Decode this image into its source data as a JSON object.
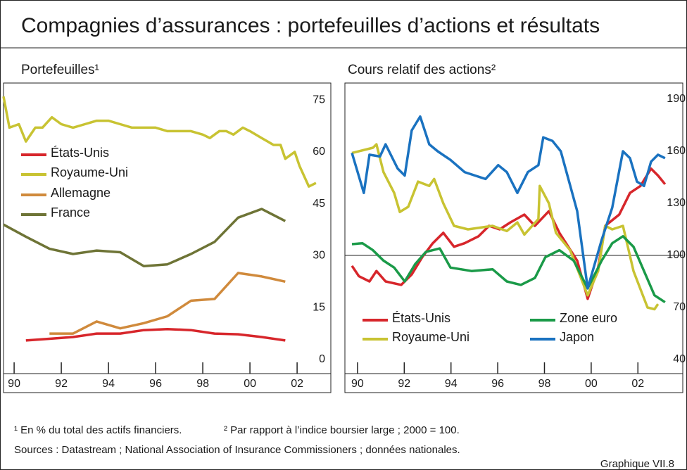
{
  "title": "Compagnies d’assurances : portefeuilles d’actions et résultats",
  "chart_data": [
    {
      "type": "line",
      "title": "Portefeuilles¹",
      "xlim": [
        1989.55,
        2003.43
      ],
      "ylim": [
        -4.07,
        79.9
      ],
      "xticks": [
        {
          "value": 1990,
          "label": "90"
        },
        {
          "value": 1992,
          "label": "92"
        },
        {
          "value": 1994,
          "label": "94"
        },
        {
          "value": 1996,
          "label": "96"
        },
        {
          "value": 1998,
          "label": "98"
        },
        {
          "value": 2000,
          "label": "00"
        },
        {
          "value": 2002,
          "label": "02"
        }
      ],
      "yticks": [
        0,
        15,
        30,
        45,
        60,
        75
      ],
      "legend": "upper left",
      "series": [
        {
          "name": "États-Unis",
          "color": "#d7262b",
          "x": [
            1990.5,
            1991.5,
            1992.5,
            1993.5,
            1994.5,
            1995.5,
            1996.5,
            1997.5,
            1998.5,
            1999.5,
            2000.5,
            2001.5
          ],
          "values": [
            5.5,
            6,
            6.5,
            7.5,
            7.5,
            8.5,
            8.8,
            8.5,
            7.5,
            7.3,
            6.5,
            5.5
          ]
        },
        {
          "name": "Royaume-Uni",
          "color": "#c8c332",
          "x": [
            1989.55,
            1989.8,
            1990.2,
            1990.5,
            1990.9,
            1991.2,
            1991.6,
            1992,
            1992.5,
            1993,
            1993.5,
            1994,
            1994.5,
            1995,
            1995.5,
            1996,
            1996.5,
            1997,
            1997.5,
            1998,
            1998.3,
            1998.7,
            1999,
            1999.3,
            1999.7,
            2000,
            2000.5,
            2001,
            2001.3,
            2001.5,
            2001.9,
            2002.1,
            2002.5,
            2002.8
          ],
          "values": [
            76,
            67,
            68,
            63,
            67,
            67,
            70,
            68,
            67,
            68,
            69,
            69,
            68,
            67,
            67,
            67,
            66,
            66,
            66,
            65,
            64,
            66,
            66,
            65,
            67,
            66,
            64,
            62,
            62,
            58,
            60,
            56,
            50,
            51
          ]
        },
        {
          "name": "Allemagne",
          "color": "#d08a3c",
          "x": [
            1991.5,
            1992.5,
            1993.5,
            1994.5,
            1995.5,
            1996.5,
            1997.5,
            1998.5,
            1999.5,
            2000.5,
            2001.5
          ],
          "values": [
            7.5,
            7.5,
            11,
            9,
            10.5,
            12.5,
            17,
            17.5,
            25,
            24,
            22.5
          ]
        },
        {
          "name": "France",
          "color": "#6e7436",
          "x": [
            1989.55,
            1990.5,
            1991.5,
            1992.5,
            1993.5,
            1994.5,
            1995.5,
            1996.5,
            1997.5,
            1998.5,
            1999.5,
            2000.5,
            2001.5
          ],
          "values": [
            39,
            35.5,
            32,
            30.5,
            31.5,
            31,
            27,
            27.5,
            30.5,
            34,
            41,
            43.5,
            40
          ]
        }
      ]
    },
    {
      "type": "line",
      "title": "Cours relatif des actions²",
      "xlim": [
        1989.46,
        2003.92
      ],
      "ylim": [
        31.9,
        199.3
      ],
      "xticks": [
        {
          "value": 1990,
          "label": "90"
        },
        {
          "value": 1992,
          "label": "92"
        },
        {
          "value": 1994,
          "label": "94"
        },
        {
          "value": 1996,
          "label": "96"
        },
        {
          "value": 1998,
          "label": "98"
        },
        {
          "value": 2000,
          "label": "00"
        },
        {
          "value": 2002,
          "label": "02"
        }
      ],
      "yticks": [
        40,
        70,
        100,
        130,
        160,
        190
      ],
      "hline": 100,
      "legend": "lower center",
      "series": [
        {
          "name": "États-Unis",
          "color": "#d7262b",
          "x": [
            1989.76,
            1990.06,
            1990.51,
            1990.81,
            1991.2,
            1991.87,
            1992.32,
            1992.77,
            1993.22,
            1993.67,
            1994.13,
            1994.58,
            1995.18,
            1995.63,
            1996.08,
            1996.54,
            1997.14,
            1997.59,
            1998.19,
            1998.64,
            1999.4,
            1999.85,
            2000.3,
            2000.6,
            2001.2,
            2001.66,
            2002.11,
            2002.56,
            2002.86,
            2003.16
          ],
          "values": [
            94,
            88,
            85,
            91,
            85,
            83,
            89,
            99,
            107,
            113,
            105,
            107,
            111,
            117,
            115,
            119,
            123.5,
            117,
            125.5,
            113,
            97,
            75,
            93,
            117,
            123.5,
            136,
            140,
            150,
            146,
            141
          ]
        },
        {
          "name": "Royaume-Uni",
          "color": "#c8c332",
          "x": [
            1989.76,
            1990.66,
            1990.81,
            1991.11,
            1991.57,
            1991.81,
            1992.17,
            1992.59,
            1993.07,
            1993.28,
            1993.67,
            1994.13,
            1994.73,
            1995.78,
            1996.39,
            1996.84,
            1997.14,
            1997.74,
            1997.8,
            1998.19,
            1998.49,
            1999.1,
            1999.85,
            2000.3,
            2000.6,
            2000.9,
            2001.36,
            2001.81,
            2002.41,
            2002.71,
            2002.86
          ],
          "values": [
            159,
            162,
            164,
            148,
            136,
            125,
            128,
            142.5,
            140,
            144,
            130,
            117,
            115,
            117,
            114,
            119,
            112,
            121,
            140,
            130,
            113,
            103,
            77,
            91,
            117,
            115,
            117,
            91,
            70,
            69,
            72
          ]
        },
        {
          "name": "Zone euro",
          "color": "#1a9a48",
          "x": [
            1989.76,
            1990.21,
            1990.66,
            1991.11,
            1991.57,
            1992.02,
            1992.47,
            1992.92,
            1993.52,
            1993.98,
            1994.88,
            1995.78,
            1996.39,
            1996.99,
            1997.59,
            1998.04,
            1998.64,
            1999.25,
            1999.85,
            2000.45,
            2000.9,
            2001.36,
            2001.81,
            2002.26,
            2002.71,
            2003.16
          ],
          "values": [
            106.5,
            107,
            103,
            97,
            93,
            85,
            95,
            102,
            104,
            93,
            91,
            92,
            85,
            83,
            87,
            99,
            103,
            97,
            81,
            97,
            107,
            111,
            105,
            91,
            77,
            73
          ]
        },
        {
          "name": "Japon",
          "color": "#1a72c0",
          "x": [
            1989.76,
            1990.27,
            1990.51,
            1990.96,
            1991.2,
            1991.72,
            1992.02,
            1992.32,
            1992.68,
            1993.07,
            1993.43,
            1993.98,
            1994.58,
            1995.48,
            1996.02,
            1996.39,
            1996.84,
            1997.29,
            1997.74,
            1997.95,
            1998.34,
            1998.7,
            1999.4,
            1999.85,
            2000.45,
            2000.9,
            2001.36,
            2001.66,
            2001.96,
            2002.26,
            2002.56,
            2002.86,
            2003.16
          ],
          "values": [
            159,
            136,
            158,
            157,
            164,
            150,
            146,
            172,
            180,
            164,
            160,
            155,
            148,
            144,
            152,
            148,
            136,
            148,
            152,
            168,
            166,
            160,
            125.5,
            81,
            109,
            127.5,
            160,
            156,
            142.5,
            140,
            154,
            158,
            156
          ]
        }
      ]
    }
  ],
  "footnotes": [
    "¹ En % du total des actifs financiers.",
    "² Par rapport à l’indice boursier large ; 2000 = 100."
  ],
  "sources": "Sources : Datastream ; National Association of Insurance Commissioners ; données nationales.",
  "figure_label": "Graphique VII.8"
}
